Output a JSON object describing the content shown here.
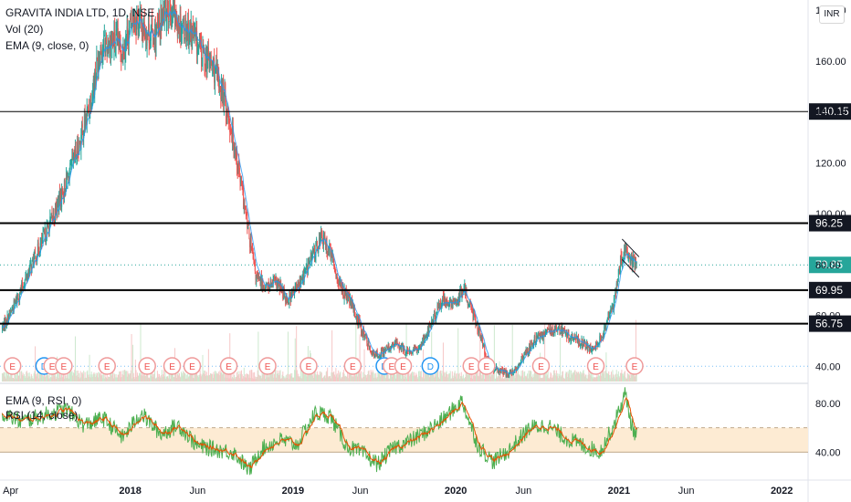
{
  "header": {
    "title": "GRAVITA INDIA LTD, 1D, NSE",
    "volume_label": "Vol (20)",
    "ema_label": "EMA (9, close, 0)",
    "currency": "INR"
  },
  "rsi_panel": {
    "ema_label": "EMA (9, RSI, 0)",
    "rsi_label": "RSI (14, close)",
    "ticks": [
      "80.00",
      "40.00"
    ],
    "rsi_color": "#4caf50",
    "ema_color": "#e65100",
    "band_color": "#fdebd3"
  },
  "price_axis": {
    "ticks": [
      "180.00",
      "160.00",
      "140.00",
      "120.00",
      "100.00",
      "80.00",
      "60.00",
      "40.00"
    ]
  },
  "levels": [
    {
      "label": "140.15",
      "style": "thin"
    },
    {
      "label": "96.25",
      "style": "thick"
    },
    {
      "label": "69.95",
      "style": "thick"
    },
    {
      "label": "56.75",
      "style": "thick"
    }
  ],
  "last_price": {
    "label": "79.85",
    "color": "#26a69a"
  },
  "time_axis": {
    "ticks": [
      "Apr",
      "2018",
      "Jun",
      "2019",
      "Jun",
      "2020",
      "Jun",
      "2021",
      "Jun",
      "2022"
    ]
  },
  "event_markers": {
    "labels": [
      "E",
      "D",
      "E",
      "E",
      "E",
      "E",
      "E",
      "E",
      "E",
      "E",
      "E",
      "E",
      "D",
      "E",
      "E",
      "D",
      "E",
      "E",
      "E",
      "E",
      "E"
    ]
  },
  "colors": {
    "up": "#26a69a",
    "down": "#ef5350",
    "accent": "#2196f3",
    "axis_text": "#131722",
    "grid": "#e0e3eb"
  },
  "chart_data": {
    "type": "candlestick",
    "title": "GRAVITA INDIA LTD, 1D, NSE",
    "approx_close_path": [
      [
        "2017-03-20",
        55
      ],
      [
        "2017-04-10",
        62
      ],
      [
        "2017-05-01",
        70
      ],
      [
        "2017-05-25",
        80
      ],
      [
        "2017-06-20",
        90
      ],
      [
        "2017-07-15",
        100
      ],
      [
        "2017-08-10",
        112
      ],
      [
        "2017-09-05",
        125
      ],
      [
        "2017-10-01",
        142
      ],
      [
        "2017-10-25",
        165
      ],
      [
        "2017-11-20",
        168
      ],
      [
        "2017-12-15",
        165
      ],
      [
        "2018-01-10",
        178
      ],
      [
        "2018-02-05",
        172
      ],
      [
        "2018-03-01",
        170
      ],
      [
        "2018-03-25",
        182
      ],
      [
        "2018-04-20",
        175
      ],
      [
        "2018-05-15",
        172
      ],
      [
        "2018-06-10",
        163
      ],
      [
        "2018-07-05",
        158
      ],
      [
        "2018-08-01",
        145
      ],
      [
        "2018-08-25",
        125
      ],
      [
        "2018-09-20",
        96
      ],
      [
        "2018-10-10",
        75
      ],
      [
        "2018-11-01",
        71
      ],
      [
        "2018-11-25",
        73
      ],
      [
        "2018-12-20",
        66
      ],
      [
        "2019-01-15",
        72
      ],
      [
        "2019-02-10",
        82
      ],
      [
        "2019-03-05",
        91
      ],
      [
        "2019-03-25",
        85
      ],
      [
        "2019-04-15",
        72
      ],
      [
        "2019-05-10",
        65
      ],
      [
        "2019-06-05",
        54
      ],
      [
        "2019-07-01",
        44
      ],
      [
        "2019-07-25",
        46
      ],
      [
        "2019-08-20",
        49
      ],
      [
        "2019-09-15",
        45
      ],
      [
        "2019-10-10",
        47
      ],
      [
        "2019-11-05",
        56
      ],
      [
        "2019-12-01",
        66
      ],
      [
        "2019-12-25",
        64
      ],
      [
        "2020-01-20",
        70
      ],
      [
        "2020-02-15",
        58
      ],
      [
        "2020-03-15",
        40
      ],
      [
        "2020-04-10",
        38
      ],
      [
        "2020-05-05",
        37
      ],
      [
        "2020-06-01",
        44
      ],
      [
        "2020-06-25",
        50
      ],
      [
        "2020-07-20",
        53
      ],
      [
        "2020-08-15",
        55
      ],
      [
        "2020-09-10",
        52
      ],
      [
        "2020-10-05",
        50
      ],
      [
        "2020-11-01",
        46
      ],
      [
        "2020-11-25",
        52
      ],
      [
        "2020-12-20",
        65
      ],
      [
        "2021-01-05",
        82
      ],
      [
        "2021-01-15",
        86
      ],
      [
        "2021-01-28",
        81
      ],
      [
        "2021-02-10",
        79.85
      ]
    ],
    "horizontal_levels": [
      140.15,
      96.25,
      69.95,
      56.75
    ],
    "last_price": 79.85,
    "ylim": [
      34,
      184
    ],
    "xlim": [
      "2017-03-15",
      "2022-03-01"
    ],
    "rsi": {
      "ylim": [
        20,
        95
      ],
      "band": [
        40,
        60
      ],
      "approx_path": [
        [
          "2017-03-20",
          72
        ],
        [
          "2017-05-01",
          65
        ],
        [
          "2017-06-20",
          70
        ],
        [
          "2017-08-10",
          75
        ],
        [
          "2017-09-20",
          62
        ],
        [
          "2017-11-01",
          68
        ],
        [
          "2017-12-15",
          52
        ],
        [
          "2018-01-25",
          72
        ],
        [
          "2018-03-10",
          55
        ],
        [
          "2018-04-20",
          62
        ],
        [
          "2018-06-01",
          45
        ],
        [
          "2018-07-15",
          42
        ],
        [
          "2018-08-20",
          40
        ],
        [
          "2018-09-25",
          25
        ],
        [
          "2018-10-20",
          42
        ],
        [
          "2018-12-01",
          50
        ],
        [
          "2019-01-10",
          46
        ],
        [
          "2019-02-20",
          72
        ],
        [
          "2019-03-25",
          70
        ],
        [
          "2019-05-01",
          45
        ],
        [
          "2019-06-10",
          38
        ],
        [
          "2019-07-10",
          30
        ],
        [
          "2019-08-15",
          44
        ],
        [
          "2019-09-15",
          48
        ],
        [
          "2019-10-20",
          55
        ],
        [
          "2019-12-01",
          66
        ],
        [
          "2020-01-15",
          82
        ],
        [
          "2020-02-20",
          45
        ],
        [
          "2020-03-25",
          32
        ],
        [
          "2020-05-01",
          42
        ],
        [
          "2020-06-15",
          60
        ],
        [
          "2020-07-25",
          62
        ],
        [
          "2020-09-01",
          52
        ],
        [
          "2020-10-15",
          45
        ],
        [
          "2020-11-20",
          40
        ],
        [
          "2020-12-20",
          62
        ],
        [
          "2021-01-15",
          88
        ],
        [
          "2021-02-01",
          58
        ],
        [
          "2021-02-12",
          54
        ]
      ]
    }
  }
}
